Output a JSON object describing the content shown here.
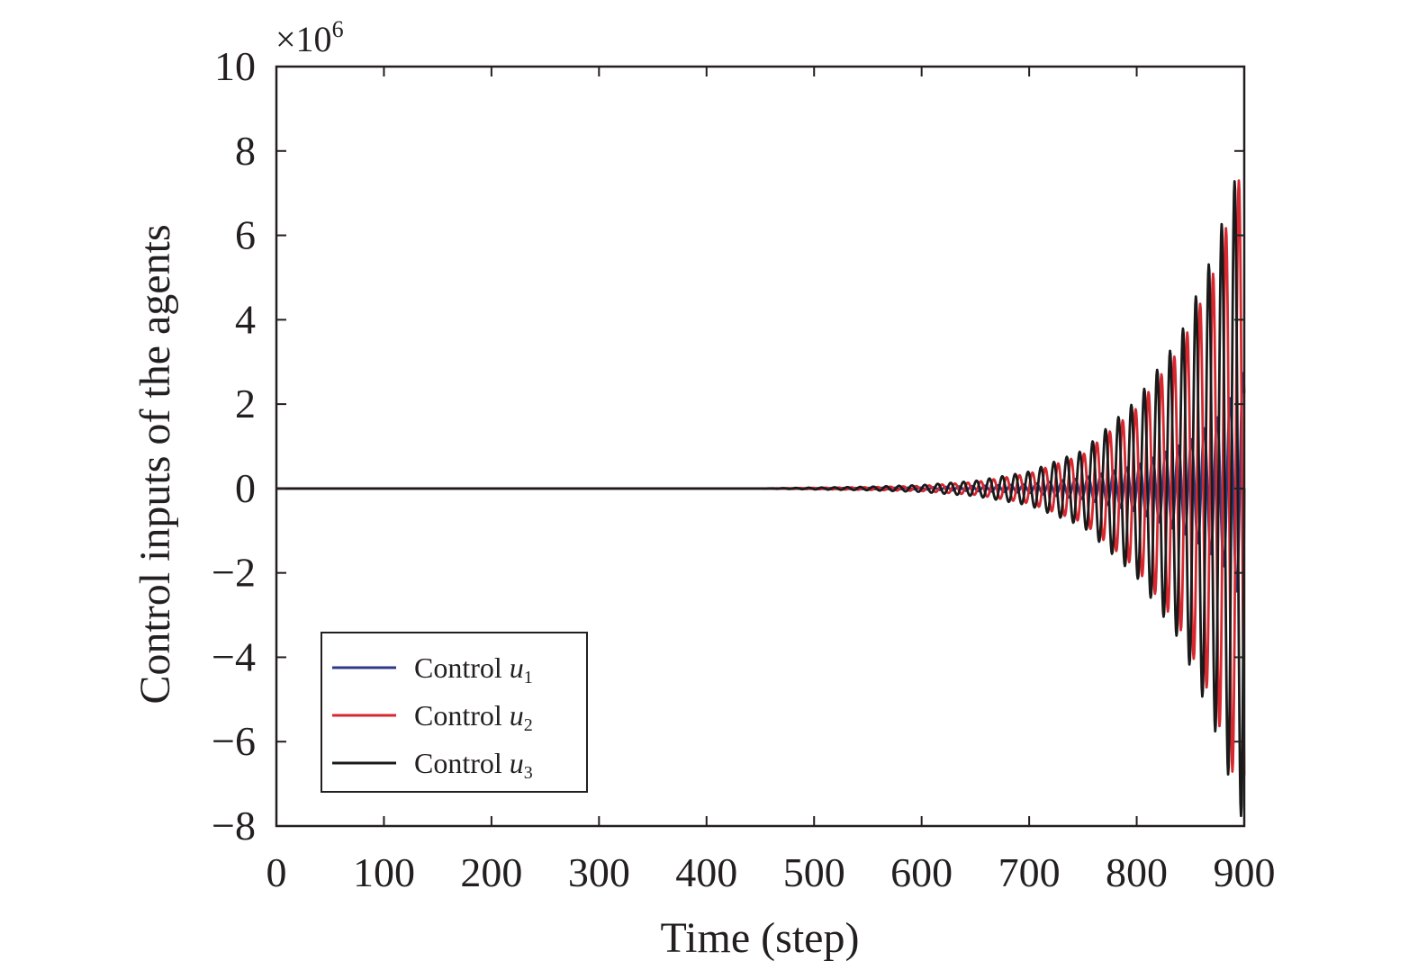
{
  "chart_data": {
    "type": "line",
    "xlabel": "Time (step)",
    "ylabel": "Control inputs of the agents",
    "y_multiplier": {
      "base": "×10",
      "exponent": "6"
    },
    "xlim": [
      0,
      900
    ],
    "ylim": [
      -8,
      10
    ],
    "x_ticks": [
      {
        "value": 0,
        "label": "0"
      },
      {
        "value": 100,
        "label": "100"
      },
      {
        "value": 200,
        "label": "200"
      },
      {
        "value": 300,
        "label": "300"
      },
      {
        "value": 400,
        "label": "400"
      },
      {
        "value": 500,
        "label": "500"
      },
      {
        "value": 600,
        "label": "600"
      },
      {
        "value": 700,
        "label": "700"
      },
      {
        "value": 800,
        "label": "800"
      },
      {
        "value": 900,
        "label": "900"
      }
    ],
    "y_ticks": [
      {
        "value": 10,
        "label": "10"
      },
      {
        "value": 8,
        "label": "8"
      },
      {
        "value": 6,
        "label": "6"
      },
      {
        "value": 4,
        "label": "4"
      },
      {
        "value": 2,
        "label": "2"
      },
      {
        "value": 0,
        "label": "0"
      },
      {
        "value": -2,
        "label": "−2"
      },
      {
        "value": -4,
        "label": "−4"
      },
      {
        "value": -6,
        "label": "−6"
      },
      {
        "value": -8,
        "label": "−8"
      }
    ],
    "grid": false,
    "legend_position": "lower-left",
    "series": [
      {
        "name_text": "Control ",
        "name_var": "u",
        "name_sub": "1",
        "color": "#2e3a87",
        "envelope": [
          [
            0,
            0
          ],
          [
            450,
            0
          ],
          [
            600,
            0.02
          ],
          [
            700,
            0.1
          ],
          [
            750,
            0.25
          ],
          [
            800,
            0.55
          ],
          [
            850,
            1.15
          ],
          [
            880,
            1.8
          ],
          [
            900,
            2.8
          ]
        ],
        "period": 12,
        "phase": 2.2
      },
      {
        "name_text": "Control ",
        "name_var": "u",
        "name_sub": "2",
        "color": "#d7282f",
        "envelope": [
          [
            0,
            0
          ],
          [
            450,
            0
          ],
          [
            550,
            0.03
          ],
          [
            600,
            0.06
          ],
          [
            650,
            0.15
          ],
          [
            700,
            0.35
          ],
          [
            750,
            0.8
          ],
          [
            800,
            1.9
          ],
          [
            840,
            3.3
          ],
          [
            870,
            5.0
          ],
          [
            890,
            6.8
          ],
          [
            900,
            7.8
          ]
        ],
        "period": 12,
        "phase": 4.2
      },
      {
        "name_text": "Control ",
        "name_var": "u",
        "name_sub": "3",
        "color": "#1a1a1a",
        "envelope": [
          [
            0,
            0
          ],
          [
            450,
            0
          ],
          [
            550,
            0.04
          ],
          [
            600,
            0.08
          ],
          [
            650,
            0.18
          ],
          [
            700,
            0.4
          ],
          [
            750,
            0.9
          ],
          [
            800,
            2.1
          ],
          [
            840,
            3.6
          ],
          [
            870,
            5.5
          ],
          [
            890,
            7.2
          ],
          [
            900,
            8.0
          ]
        ],
        "period": 12,
        "phase": 0
      }
    ]
  }
}
